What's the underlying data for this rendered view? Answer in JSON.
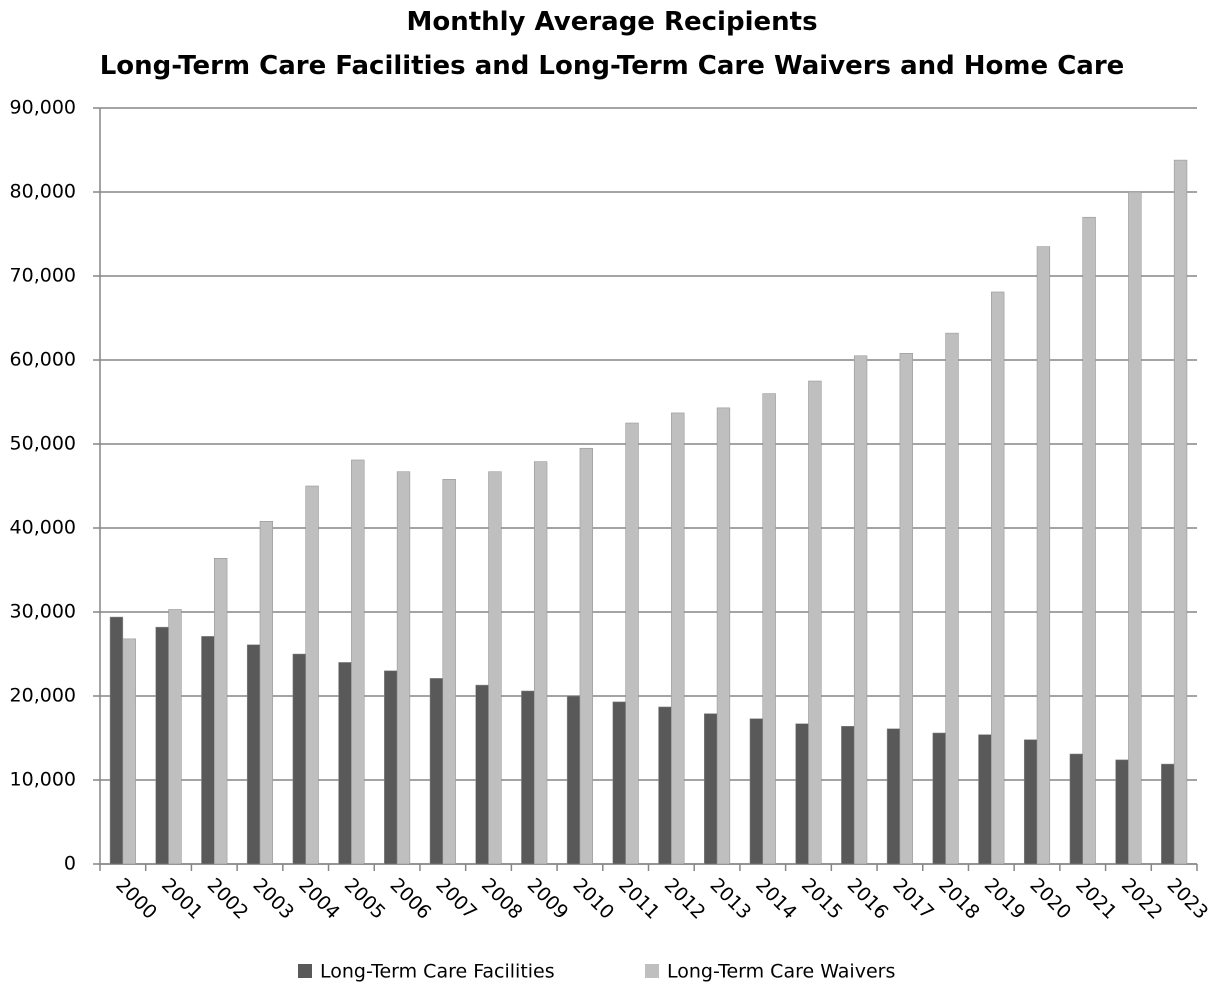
{
  "chart_data": {
    "type": "bar",
    "title": "Monthly Average Recipients",
    "subtitle": "Long-Term Care Facilities and Long-Term Care Waivers and Home Care",
    "categories": [
      "2000",
      "2001",
      "2002",
      "2003",
      "2004",
      "2005",
      "2006",
      "2007",
      "2008",
      "2009",
      "2010",
      "2011",
      "2012",
      "2013",
      "2014",
      "2015",
      "2016",
      "2017",
      "2018",
      "2019",
      "2020",
      "2021",
      "2022",
      "2023"
    ],
    "series": [
      {
        "name": "Long-Term Care Facilities",
        "color": "#595959",
        "values": [
          29400,
          28200,
          27100,
          26100,
          25000,
          24000,
          23000,
          22100,
          21300,
          20600,
          20000,
          19300,
          18700,
          17900,
          17300,
          16700,
          16400,
          16100,
          15600,
          15400,
          14800,
          13100,
          12400,
          11900
        ]
      },
      {
        "name": "Long-Term Care Waivers",
        "color": "#bfbfbf",
        "values": [
          26800,
          30300,
          36400,
          40800,
          45000,
          48100,
          46700,
          45800,
          46700,
          47900,
          49500,
          52500,
          53700,
          54300,
          56000,
          57500,
          60500,
          60800,
          63200,
          68100,
          73500,
          77000,
          80000,
          83800
        ]
      }
    ],
    "ylim": [
      0,
      90000
    ],
    "yticks": [
      0,
      {
        "value": 10000,
        "label": "10,000"
      },
      {
        "value": 20000,
        "label": "20,000"
      },
      {
        "value": 30000,
        "label": "30,000"
      },
      {
        "value": 40000,
        "label": "40,000"
      },
      {
        "value": 50000,
        "label": "50,000"
      },
      {
        "value": 60000,
        "label": "60,000"
      },
      {
        "value": 70000,
        "label": "70,000"
      },
      {
        "value": 80000,
        "label": "80,000"
      },
      {
        "value": 90000,
        "label": "90,000"
      }
    ],
    "grid": true,
    "legend": "bottom"
  }
}
